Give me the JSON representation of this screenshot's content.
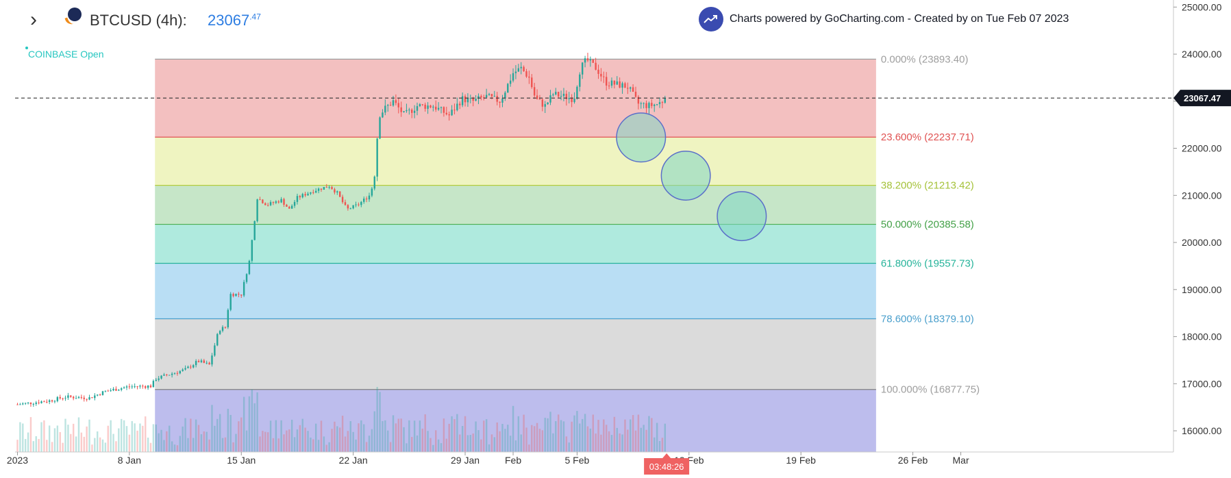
{
  "header": {
    "symbol_label": "BTCUSD (4h):",
    "price_main": "23067",
    "price_decimals": ".47",
    "exchange_status": "COINBASE Open",
    "credit_text": "Charts powered by GoCharting.com - Created by  on Tue Feb 07 2023"
  },
  "colors": {
    "up": "#26a69a",
    "down": "#ef5350",
    "price_marker_bg": "#131722",
    "countdown_bg": "#ef6262",
    "accent_blue": "#2d7de2"
  },
  "chart_data": {
    "type": "candlestick",
    "instrument": "BTCUSD",
    "interval": "4h",
    "last_price": 23067.47,
    "last_price_label": "23067.47",
    "countdown_label": "03:48:26",
    "ylim": [
      15550,
      25150
    ],
    "y_ticks": [
      {
        "value": 25000,
        "label": "25000.00"
      },
      {
        "value": 24000,
        "label": "24000.00"
      },
      {
        "value": 23000,
        "label": "23000.00"
      },
      {
        "value": 22000,
        "label": "22000.00"
      },
      {
        "value": 21000,
        "label": "21000.00"
      },
      {
        "value": 20000,
        "label": "20000.00"
      },
      {
        "value": 19000,
        "label": "19000.00"
      },
      {
        "value": 18000,
        "label": "18000.00"
      },
      {
        "value": 17000,
        "label": "17000.00"
      },
      {
        "value": 16000,
        "label": "16000.00"
      }
    ],
    "x_range_days": [
      -0.15,
      72.3
    ],
    "x_ticks": [
      {
        "day": 0.0,
        "label": "2023"
      },
      {
        "day": 7.0,
        "label": "8 Jan"
      },
      {
        "day": 14.0,
        "label": "15 Jan"
      },
      {
        "day": 21.0,
        "label": "22 Jan"
      },
      {
        "day": 28.0,
        "label": "29 Jan"
      },
      {
        "day": 31.0,
        "label": "Feb"
      },
      {
        "day": 35.0,
        "label": "5 Feb"
      },
      {
        "day": 42.0,
        "label": "12 Feb"
      },
      {
        "day": 49.0,
        "label": "19 Feb"
      },
      {
        "day": 56.0,
        "label": "26 Feb"
      },
      {
        "day": 59.0,
        "label": "Mar"
      }
    ],
    "fibonacci": {
      "start_day": 8.6,
      "end_day": 53.7,
      "levels": [
        {
          "ratio": "0.000%",
          "price": 23893.4,
          "label": "0.000% (23893.40)",
          "line": "#9e9e9e",
          "text": "#9e9e9e",
          "fill": "#e57373"
        },
        {
          "ratio": "23.600%",
          "price": 22237.71,
          "label": "23.600% (22237.71)",
          "line": "#e05252",
          "text": "#e05252",
          "fill": "#dce775"
        },
        {
          "ratio": "38.200%",
          "price": 21213.42,
          "label": "38.200% (21213.42)",
          "line": "#b5cc3a",
          "text": "#a5c23a",
          "fill": "#81c784"
        },
        {
          "ratio": "50.000%",
          "price": 20385.58,
          "label": "50.000% (20385.58)",
          "line": "#4caf50",
          "text": "#43a047",
          "fill": "#4dd0b5"
        },
        {
          "ratio": "61.800%",
          "price": 19557.73,
          "label": "61.800% (19557.73)",
          "line": "#26b39a",
          "text": "#26b39a",
          "fill": "#64b5e6"
        },
        {
          "ratio": "78.600%",
          "price": 18379.1,
          "label": "78.600% (18379.10)",
          "line": "#4a9fcc",
          "text": "#4a9fcc",
          "fill": "#b0b0b0"
        },
        {
          "ratio": "100.000%",
          "price": 16877.75,
          "label": "100.000% (16877.75)",
          "line": "#808080",
          "text": "#9e9e9e",
          "fill": "#6c6cd8"
        }
      ]
    },
    "circles": [
      {
        "day": 39.0,
        "price": 22230,
        "radius_price": 520
      },
      {
        "day": 41.8,
        "price": 21420,
        "radius_price": 520
      },
      {
        "day": 45.3,
        "price": 20560,
        "radius_price": 520
      }
    ],
    "series": [
      {
        "name": "BTCUSD",
        "close_path": [
          [
            0.0,
            16560
          ],
          [
            2.0,
            16640
          ],
          [
            3.0,
            16720
          ],
          [
            4.5,
            16700
          ],
          [
            5.5,
            16840
          ],
          [
            7.0,
            16940
          ],
          [
            8.4,
            16950
          ],
          [
            8.6,
            17100
          ],
          [
            9.5,
            17200
          ],
          [
            10.5,
            17300
          ],
          [
            11.3,
            17480
          ],
          [
            12.0,
            17400
          ],
          [
            12.6,
            18150
          ],
          [
            13.0,
            18200
          ],
          [
            13.3,
            18900
          ],
          [
            14.0,
            18900
          ],
          [
            14.5,
            19600
          ],
          [
            14.8,
            20400
          ],
          [
            15.0,
            20950
          ],
          [
            15.6,
            20800
          ],
          [
            16.5,
            20900
          ],
          [
            17.0,
            20700
          ],
          [
            17.5,
            20950
          ],
          [
            18.5,
            21100
          ],
          [
            19.5,
            21200
          ],
          [
            20.0,
            21050
          ],
          [
            20.6,
            20700
          ],
          [
            21.3,
            20800
          ],
          [
            22.0,
            21000
          ],
          [
            22.3,
            21300
          ],
          [
            22.6,
            22700
          ],
          [
            23.0,
            22850
          ],
          [
            23.5,
            23000
          ],
          [
            24.2,
            22700
          ],
          [
            25.0,
            22900
          ],
          [
            26.0,
            22900
          ],
          [
            27.0,
            22700
          ],
          [
            27.8,
            23050
          ],
          [
            28.5,
            23000
          ],
          [
            29.3,
            23100
          ],
          [
            30.2,
            23000
          ],
          [
            31.0,
            23600
          ],
          [
            31.5,
            23700
          ],
          [
            32.0,
            23500
          ],
          [
            32.4,
            23050
          ],
          [
            33.0,
            22900
          ],
          [
            33.5,
            23150
          ],
          [
            34.2,
            23100
          ],
          [
            34.8,
            23050
          ],
          [
            35.2,
            23700
          ],
          [
            35.6,
            23880
          ],
          [
            36.2,
            23700
          ],
          [
            36.8,
            23400
          ],
          [
            37.6,
            23350
          ],
          [
            38.2,
            23300
          ],
          [
            38.8,
            22950
          ],
          [
            39.5,
            22900
          ],
          [
            40.1,
            22950
          ],
          [
            40.6,
            23067
          ]
        ]
      }
    ],
    "volume_max": 1.0
  }
}
